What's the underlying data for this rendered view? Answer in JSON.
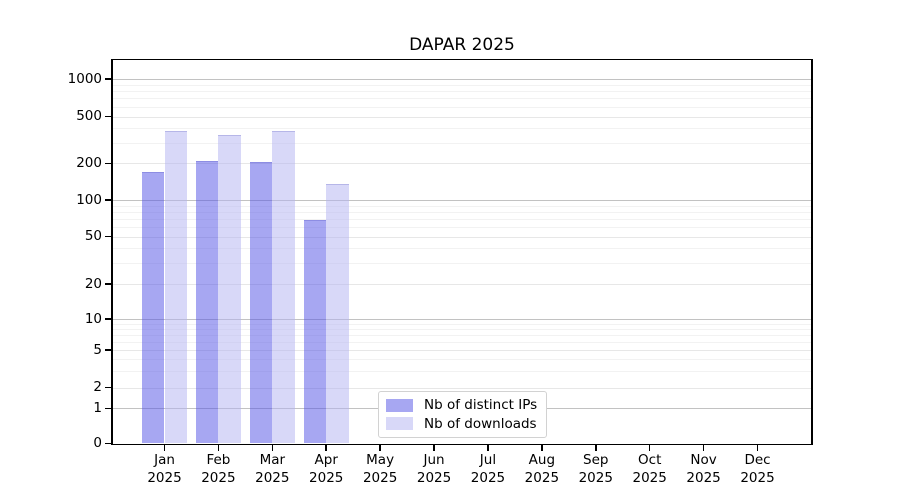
{
  "chart_data": {
    "type": "bar",
    "title": "DAPAR 2025",
    "y_scale": "symlog",
    "ylim": [
      0,
      1435
    ],
    "grid": true,
    "legend_position": "lower center",
    "yticks": [
      0,
      1,
      2,
      5,
      10,
      20,
      50,
      100,
      200,
      500,
      1000
    ],
    "categories": [
      {
        "line1": "Jan",
        "line2": "2025"
      },
      {
        "line1": "Feb",
        "line2": "2025"
      },
      {
        "line1": "Mar",
        "line2": "2025"
      },
      {
        "line1": "Apr",
        "line2": "2025"
      },
      {
        "line1": "May",
        "line2": "2025"
      },
      {
        "line1": "Jun",
        "line2": "2025"
      },
      {
        "line1": "Jul",
        "line2": "2025"
      },
      {
        "line1": "Aug",
        "line2": "2025"
      },
      {
        "line1": "Sep",
        "line2": "2025"
      },
      {
        "line1": "Oct",
        "line2": "2025"
      },
      {
        "line1": "Nov",
        "line2": "2025"
      },
      {
        "line1": "Dec",
        "line2": "2025"
      }
    ],
    "series": [
      {
        "name": "Nb of distinct IPs",
        "color": "#a7a7f2",
        "values": [
          170,
          210,
          205,
          68,
          null,
          null,
          null,
          null,
          null,
          null,
          null,
          null
        ]
      },
      {
        "name": "Nb of downloads",
        "color": "#d8d8f8",
        "values": [
          380,
          350,
          380,
          135,
          null,
          null,
          null,
          null,
          null,
          null,
          null,
          null
        ]
      }
    ]
  }
}
